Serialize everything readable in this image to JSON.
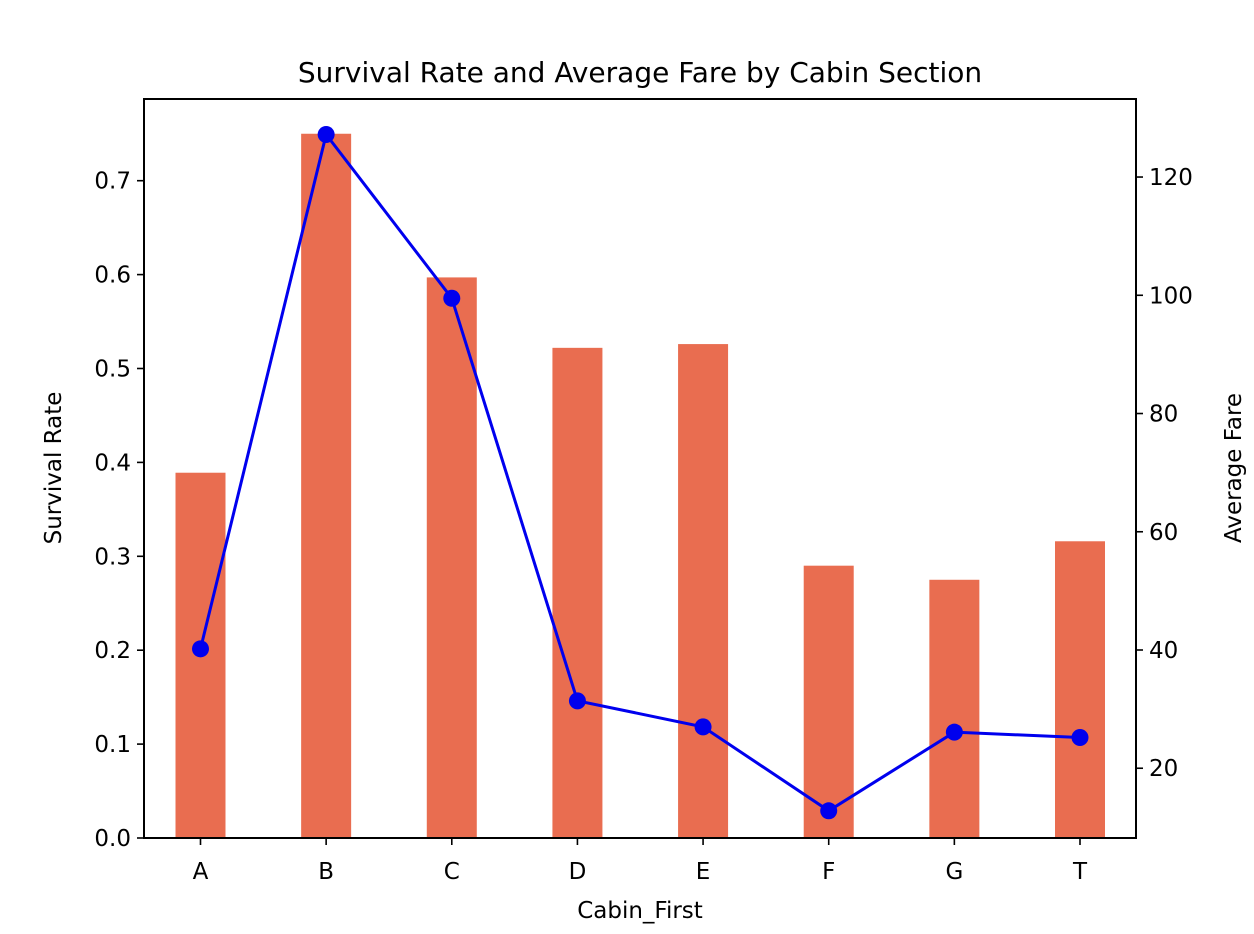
{
  "chart_data": {
    "type": "bar+line",
    "title": "Survival Rate and Average Fare by Cabin Section",
    "xlabel": "Cabin_First",
    "ylabel_left": "Survival Rate",
    "ylabel_right": "Average Fare",
    "categories": [
      "A",
      "B",
      "C",
      "D",
      "E",
      "F",
      "G",
      "T"
    ],
    "bar_series": {
      "name": "Survival Rate",
      "color": "#E96D50",
      "values": [
        0.389,
        0.75,
        0.597,
        0.522,
        0.526,
        0.29,
        0.275,
        0.316
      ]
    },
    "line_series": {
      "name": "Average Fare",
      "color": "#0000EE",
      "values": [
        40.2,
        127.2,
        99.5,
        31.4,
        27.0,
        12.8,
        26.1,
        25.2
      ]
    },
    "ylim_left": [
      0,
      0.787
    ],
    "ylim_right": [
      8.2,
      133.2
    ],
    "yticks_left": [
      "0.0",
      "0.1",
      "0.2",
      "0.3",
      "0.4",
      "0.5",
      "0.6",
      "0.7"
    ],
    "yticks_right": [
      "20",
      "40",
      "60",
      "80",
      "100",
      "120"
    ],
    "grid": false,
    "legend": "none"
  }
}
